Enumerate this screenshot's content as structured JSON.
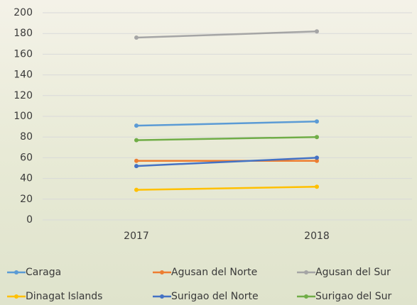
{
  "chart_data": {
    "type": "line",
    "categories": [
      "2017",
      "2018"
    ],
    "series": [
      {
        "name": "Caraga",
        "color": "#5b9bd5",
        "values": [
          91,
          95
        ]
      },
      {
        "name": "Agusan del Norte",
        "color": "#ed7d31",
        "values": [
          57,
          57
        ]
      },
      {
        "name": "Agusan del Sur",
        "color": "#a5a5a5",
        "values": [
          176,
          182
        ]
      },
      {
        "name": "Dinagat Islands",
        "color": "#ffc000",
        "values": [
          29,
          32
        ]
      },
      {
        "name": "Surigao del Norte",
        "color": "#4472c4",
        "values": [
          52,
          60
        ]
      },
      {
        "name": "Surigao del Sur",
        "color": "#70ad47",
        "values": [
          77,
          80
        ]
      }
    ],
    "ylim": [
      0,
      200
    ],
    "yticks": [
      0,
      20,
      40,
      60,
      80,
      100,
      120,
      140,
      160,
      180,
      200
    ],
    "grid": true,
    "legend": "bottom"
  }
}
